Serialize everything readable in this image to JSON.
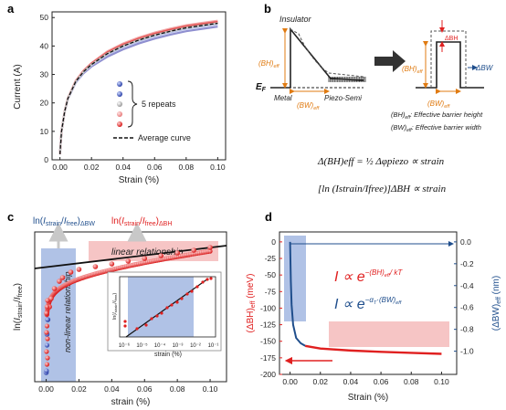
{
  "panels": {
    "a": {
      "letter": "a",
      "xlabel": "Strain (%)",
      "ylabel": "Current (A)",
      "xticks": [
        "0.00",
        "0.02",
        "0.04",
        "0.06",
        "0.08",
        "0.10"
      ],
      "yticks": [
        "0",
        "10",
        "20",
        "30",
        "40",
        "50"
      ],
      "legend_repeats": "5 repeats",
      "legend_average": "Average curve"
    },
    "b": {
      "letter": "b",
      "insulator": "Insulator",
      "ef": "E",
      "ef_sub": "F",
      "metal": "Metal",
      "piezo_semi": "Piezo-Semi",
      "bh_eff": "(BH)",
      "bw_eff": "(BW)",
      "eff_sub": "eff",
      "delta_bh": "ΔBH",
      "delta_bw": "ΔBW",
      "note1_lhs": "(BH)",
      "note1_rhs": ": Effective barrier height",
      "note2_lhs": "(BW)",
      "note2_rhs": ": Effective barrier width",
      "eq1": "Δ(BH)eff = ½ Δφpiezo ∝ strain",
      "eq2": "[ln (Istrain/Ifree)]ΔBH ∝ strain"
    },
    "c": {
      "letter": "c",
      "label_bw": "ln(Istrain/Ifree)ΔBW",
      "label_bh": "ln(Istrain/Ifree)ΔBH",
      "linear": "linear relationship",
      "nonlinear": "non-linear relationship",
      "xlabel": "strain (%)",
      "ylabel": "ln(Istrain/Ifree)",
      "xticks": [
        "0.00",
        "0.02",
        "0.04",
        "0.06",
        "0.08",
        "0.10"
      ],
      "inset_xlabel": "strain (%)",
      "inset_ylabel": "ln(Istrain/Ifree)",
      "inset_xticks": [
        "10⁻⁶",
        "10⁻⁵",
        "10⁻⁴",
        "10⁻³",
        "10⁻²",
        "10⁻¹"
      ]
    },
    "d": {
      "letter": "d",
      "xlabel": "Strain (%)",
      "ylabel_left": "(ΔBH)eff (meV)",
      "ylabel_right": "(ΔBW)eff (nm)",
      "xticks": [
        "0.00",
        "0.02",
        "0.04",
        "0.06",
        "0.08",
        "0.10"
      ],
      "yticks_left": [
        "0",
        "-25",
        "-50",
        "-75",
        "-100",
        "-125",
        "-150",
        "-175",
        "-200"
      ],
      "yticks_right": [
        "0.0",
        "-0.2",
        "-0.4",
        "-0.6",
        "-0.8",
        "-1.0"
      ],
      "eq_bh": "I ∝ e^-(BH)eff/kT",
      "eq_bw": "I ∝ e^-αT·(BW)eff"
    }
  },
  "colors": {
    "red": "#e02020",
    "blue": "#1f4e8c",
    "light_blue": "#8fa8dc",
    "light_red": "#f4b6b6",
    "orange": "#e07b12"
  },
  "chart_data": [
    {
      "type": "line",
      "panel": "a",
      "xlabel": "Strain (%)",
      "ylabel": "Current (A)",
      "xlim": [
        -0.005,
        0.105
      ],
      "ylim": [
        0,
        52
      ],
      "x": [
        0.0,
        0.001,
        0.003,
        0.005,
        0.01,
        0.015,
        0.02,
        0.03,
        0.04,
        0.05,
        0.06,
        0.07,
        0.08,
        0.09,
        0.1
      ],
      "series": [
        {
          "name": "5 repeats",
          "values": [
            2,
            10,
            17,
            21.5,
            27.5,
            31,
            33.5,
            37.3,
            40.0,
            42.1,
            43.8,
            45.2,
            46.4,
            47.2,
            48.0
          ]
        },
        {
          "name": "Average curve",
          "values": [
            2,
            10,
            17,
            21.5,
            27.5,
            31,
            33.5,
            37.3,
            40.0,
            42.1,
            43.8,
            45.2,
            46.4,
            47.2,
            48.0
          ]
        }
      ]
    },
    {
      "type": "scatter",
      "panel": "c",
      "xlabel": "strain (%)",
      "ylabel": "ln(Istrain/Ifree)",
      "xlim": [
        -0.007,
        0.11
      ],
      "x": [
        0.0,
        0.0005,
        0.001,
        0.002,
        0.003,
        0.005,
        0.008,
        0.01,
        0.015,
        0.02,
        0.03,
        0.04,
        0.05,
        0.06,
        0.07,
        0.08,
        0.09,
        0.1
      ],
      "y": [
        0.5,
        2.6,
        3.4,
        4.1,
        4.55,
        5.1,
        5.5,
        5.7,
        6.0,
        6.15,
        6.3,
        6.45,
        6.6,
        6.75,
        6.9,
        7.05,
        7.2,
        7.35
      ],
      "fit_line": {
        "x": [
          -0.007,
          0.11
        ],
        "y": [
          6.2,
          7.45
        ]
      }
    },
    {
      "type": "line",
      "panel": "d",
      "xlabel": "Strain (%)",
      "ylabel": "(ΔBH)eff (meV)",
      "xlim": [
        -0.007,
        0.11
      ],
      "ylim": [
        -200,
        15
      ],
      "x": [
        0.0,
        0.0005,
        0.001,
        0.002,
        0.004,
        0.007,
        0.01,
        0.02,
        0.04,
        0.06,
        0.08,
        0.1
      ],
      "series": [
        {
          "name": "(ΔBH)eff",
          "values": [
            0,
            -60,
            -95,
            -125,
            -145,
            -153,
            -157,
            -161,
            -164,
            -166,
            -167.5,
            -169
          ]
        }
      ]
    }
  ]
}
